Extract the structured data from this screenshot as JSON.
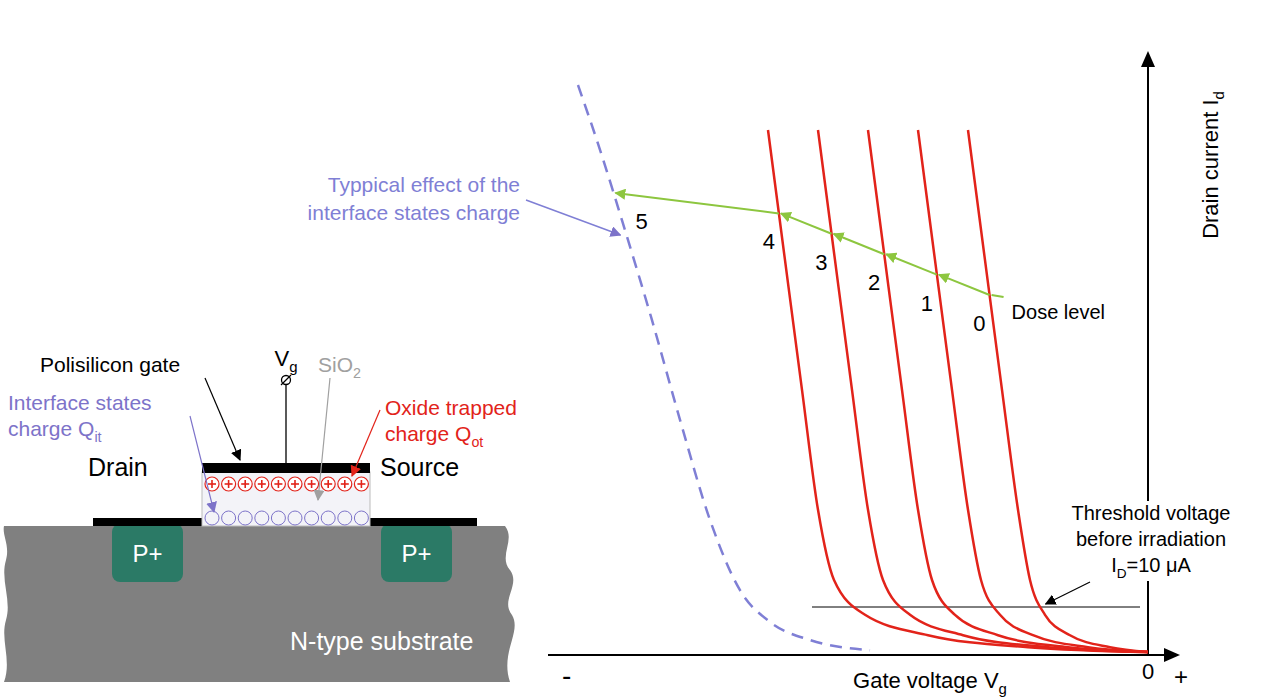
{
  "diagram": {
    "gate": "Polisilicon gate",
    "gate_voltage": [
      "V",
      {
        "sub": "g"
      }
    ],
    "oxide": [
      "SiO",
      {
        "sub": "2"
      }
    ],
    "interface_charge": [
      [
        "Interface states"
      ],
      [
        "charge Q",
        {
          "sub": "it"
        }
      ]
    ],
    "oxide_charge": [
      [
        "Oxide trapped"
      ],
      [
        "charge Q",
        {
          "sub": "ot"
        }
      ]
    ],
    "drain": "Drain",
    "source": "Source",
    "drain_region": "P+",
    "source_region": "P+",
    "substrate": "N-type substrate"
  },
  "chart_data": {
    "type": "line",
    "x_label": [
      "Gate voltage V",
      {
        "sub": "g"
      }
    ],
    "y_label": [
      "Drain current I",
      {
        "sub": "d"
      }
    ],
    "axis_ends": [
      "-",
      "+"
    ],
    "xlim": [
      -12,
      0.4
    ],
    "xticks": [
      0
    ],
    "ylim": [
      0,
      100
    ],
    "tick_labels": "x",
    "grid": false,
    "series_title": "Dose level",
    "series": [
      {
        "name": "0",
        "color": "#e2231a",
        "line_style": "solid",
        "x": [
          -3.6,
          -3.26,
          -2.92,
          -2.6,
          -2.36,
          -2.06,
          -1.56,
          -0.76,
          0
        ],
        "values": [
          87.5,
          65.8,
          44.2,
          24.2,
          12.5,
          6.7,
          3.3,
          1.3,
          0.5
        ]
      },
      {
        "name": "1",
        "color": "#e2231a",
        "line_style": "solid",
        "x": [
          -4.6,
          -4.26,
          -3.92,
          -3.6,
          -3.34,
          -2.96,
          -2.3,
          -1.2,
          0
        ],
        "values": [
          87.5,
          65.8,
          44.2,
          24.2,
          12.5,
          6.7,
          3.3,
          1.3,
          0.5
        ]
      },
      {
        "name": "2",
        "color": "#e2231a",
        "line_style": "solid",
        "x": [
          -5.6,
          -5.26,
          -4.92,
          -4.6,
          -4.32,
          -3.86,
          -3.0,
          -1.6,
          0
        ],
        "values": [
          87.5,
          65.8,
          44.2,
          24.2,
          12.5,
          6.7,
          3.3,
          1.3,
          0.5
        ]
      },
      {
        "name": "3",
        "color": "#e2231a",
        "line_style": "solid",
        "x": [
          -6.6,
          -6.26,
          -5.92,
          -5.6,
          -5.3,
          -4.76,
          -3.7,
          -2.0,
          0
        ],
        "values": [
          87.5,
          65.8,
          44.2,
          24.2,
          12.5,
          6.7,
          3.3,
          1.3,
          0.5
        ]
      },
      {
        "name": "4",
        "color": "#e2231a",
        "line_style": "solid",
        "x": [
          -7.6,
          -7.26,
          -6.92,
          -6.6,
          -6.28,
          -5.66,
          -4.4,
          -2.4,
          0
        ],
        "values": [
          87.5,
          65.8,
          44.2,
          24.2,
          12.5,
          6.7,
          3.3,
          1.3,
          0.5
        ]
      },
      {
        "name": "5",
        "color": "#7f7fd5",
        "line_style": "dashed",
        "x": [
          -11.4,
          -10.96,
          -10.46,
          -9.92,
          -9.36,
          -8.76,
          -8.16,
          -7.56,
          -6.76,
          -5.56
        ],
        "values": [
          95,
          84.2,
          70.8,
          55.8,
          39.2,
          22.5,
          10.8,
          5.5,
          2.5,
          0.8
        ]
      }
    ],
    "threshold": {
      "text": [
        [
          "Threshold voltage"
        ],
        [
          "before irradiation"
        ],
        [
          "I",
          {
            "sub": "D"
          },
          "=10 μA"
        ]
      ],
      "y": 8,
      "x": [
        -6.72,
        -0.16
      ]
    },
    "annotation": {
      "text": [
        [
          "Typpical effect of the"
        ],
        [
          "interface states charge"
        ]
      ],
      "series": "5"
    }
  }
}
